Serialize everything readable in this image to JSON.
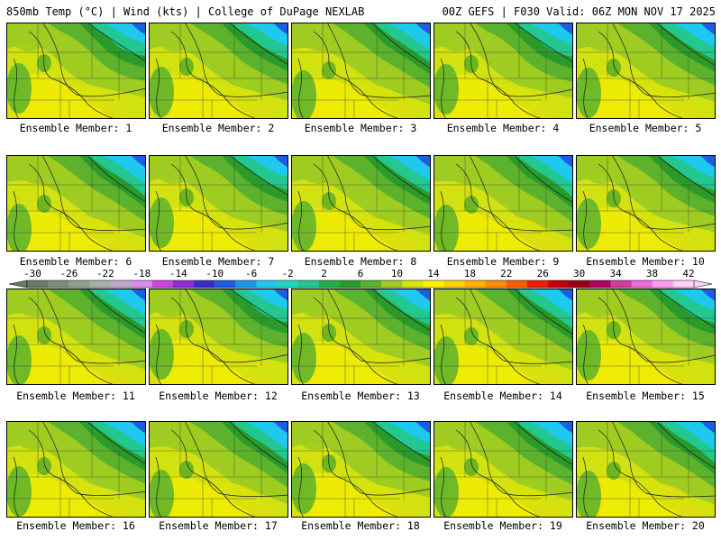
{
  "header": {
    "left": "850mb Temp (°C) | Wind (kts) | College of DuPage NEXLAB",
    "right": "00Z GEFS | F030 Valid: 06Z MON NOV 17 2025"
  },
  "panels": [
    {
      "label": "Ensemble Member: 1"
    },
    {
      "label": "Ensemble Member: 2"
    },
    {
      "label": "Ensemble Member: 3"
    },
    {
      "label": "Ensemble Member: 4"
    },
    {
      "label": "Ensemble Member: 5"
    },
    {
      "label": "Ensemble Member: 6"
    },
    {
      "label": "Ensemble Member: 7"
    },
    {
      "label": "Ensemble Member: 8"
    },
    {
      "label": "Ensemble Member: 9"
    },
    {
      "label": "Ensemble Member: 10"
    },
    {
      "label": "Ensemble Member: 11"
    },
    {
      "label": "Ensemble Member: 12"
    },
    {
      "label": "Ensemble Member: 13"
    },
    {
      "label": "Ensemble Member: 14"
    },
    {
      "label": "Ensemble Member: 15"
    },
    {
      "label": "Ensemble Member: 16"
    },
    {
      "label": "Ensemble Member: 17"
    },
    {
      "label": "Ensemble Member: 18"
    },
    {
      "label": "Ensemble Member: 19"
    },
    {
      "label": "Ensemble Member: 20"
    }
  ],
  "colorbar": {
    "ticks": [
      "-30",
      "-26",
      "-22",
      "-18",
      "-14",
      "-10",
      "-6",
      "-2",
      "2",
      "6",
      "10",
      "14",
      "18",
      "22",
      "26",
      "30",
      "34",
      "38",
      "42"
    ],
    "colors": [
      "#6b7a6b",
      "#7f8c7f",
      "#939f93",
      "#a7b0a7",
      "#c0a8c8",
      "#dc8ce8",
      "#cc44dd",
      "#8e2dd8",
      "#3a2cc8",
      "#1f5de0",
      "#1b95ea",
      "#1ec8ef",
      "#22d9c0",
      "#22c890",
      "#1fb04a",
      "#2a9a2a",
      "#5cb22c",
      "#9fcc20",
      "#d6e40e",
      "#fff200",
      "#ffd400",
      "#ffb000",
      "#ff8c00",
      "#ff5a00",
      "#e81e0a",
      "#c3000c",
      "#980018",
      "#b40060",
      "#d23ca0",
      "#ee6ad8",
      "#ff9cf0",
      "#ffd0f8"
    ]
  }
}
